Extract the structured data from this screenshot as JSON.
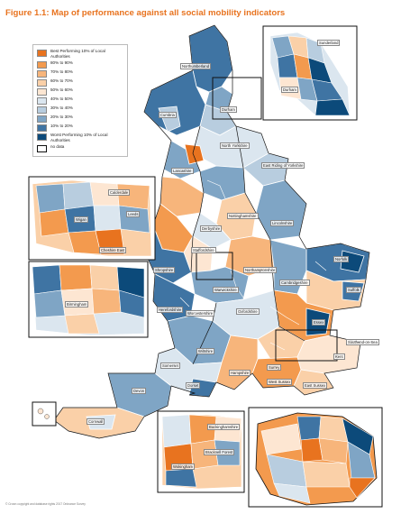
{
  "title": "Figure 1.1: Map of performance against all social mobility indicators",
  "legend": [
    {
      "label": "Best Performing 10% of Local Authorities",
      "color": "#e8731f"
    },
    {
      "label": "80% to 90%",
      "color": "#f39a4e"
    },
    {
      "label": "70% to 80%",
      "color": "#f7b57b"
    },
    {
      "label": "60% to 70%",
      "color": "#fad0a8"
    },
    {
      "label": "50% to 60%",
      "color": "#fde6d2"
    },
    {
      "label": "40% to 50%",
      "color": "#dbe6ef"
    },
    {
      "label": "30% to 40%",
      "color": "#b8cddf"
    },
    {
      "label": "20% to 30%",
      "color": "#7fa5c5"
    },
    {
      "label": "10% to 20%",
      "color": "#3f74a3"
    },
    {
      "label": "Worst Performing 10% of Local Authorities",
      "color": "#0c4a7a"
    },
    {
      "label": "no data",
      "color": "#ffffff"
    }
  ],
  "labels": {
    "northumberland": "Northumberland",
    "cumbria": "Cumbria",
    "durham": "Durham",
    "north_yorkshire": "North Yorkshire",
    "east_riding": "East Riding of Yorkshire",
    "lancashire": "Lancashire",
    "lincolnshire": "Lincolnshire",
    "nottinghamshire": "Nottinghamshire",
    "derbyshire": "Derbyshire",
    "staffordshire": "Staffordshire",
    "shropshire": "Shropshire",
    "warwickshire": "Warwickshire",
    "norfolk": "Norfolk",
    "suffolk": "Suffolk",
    "cambridgeshire": "Cambridgeshire",
    "essex": "Essex",
    "oxfordshire": "Oxfordshire",
    "wiltshire": "Wiltshire",
    "hampshire": "Hampshire",
    "surrey": "Surrey",
    "kent": "Kent",
    "west_sussex": "West Sussex",
    "east_sussex": "East Sussex",
    "devon": "Devon",
    "cornwall": "Cornwall",
    "dorset": "Dorset",
    "somerset": "Somerset",
    "herefordshire": "Herefordshire",
    "worcestershire": "Worcestershire",
    "northamptonshire": "Northamptonshire",
    "cheshire_east": "Cheshire East",
    "birmingham": "Birmingham",
    "wokingham": "Wokingham",
    "buckinghamshire": "Buckinghamshire",
    "bracknell_forest": "Bracknell Forest",
    "southend": "Southend-on-Sea",
    "calderdale": "Calderdale",
    "leeds": "Leeds",
    "wigan": "Wigan",
    "sunderland": "Sunderland",
    "durham_inset": "Durham"
  },
  "copyright": "© Crown copyright and database rights 2017 Ordnance Survey"
}
